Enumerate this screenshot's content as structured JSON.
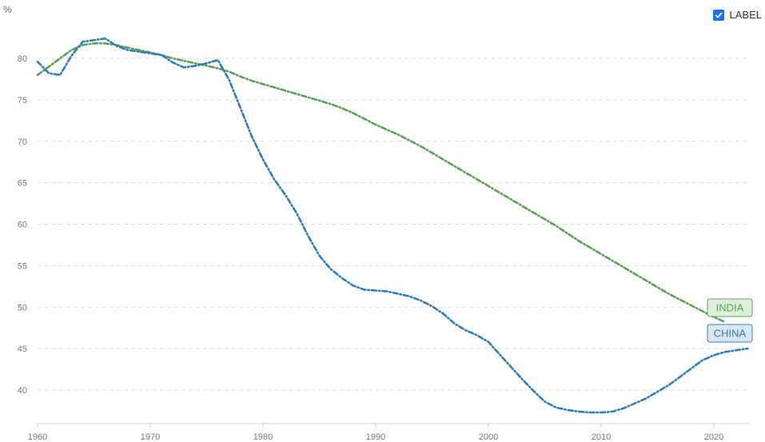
{
  "label_toggle": {
    "text": "LABEL",
    "checked": true,
    "color": "#1a73e8"
  },
  "chart_data": {
    "type": "line",
    "ylabel": "%",
    "xlim": [
      1960,
      2023
    ],
    "ylim": [
      37,
      85
    ],
    "y_ticks": [
      40,
      45,
      50,
      55,
      60,
      65,
      70,
      75,
      80
    ],
    "x_ticks": [
      1960,
      1970,
      1980,
      1990,
      2000,
      2010,
      2020
    ],
    "grid": true,
    "series": [
      {
        "name": "INDIA",
        "color": "#5b9e58",
        "tag_fill": "#dcefd8",
        "x": [
          1960,
          1961,
          1962,
          1963,
          1964,
          1965,
          1966,
          1967,
          1968,
          1969,
          1970,
          1971,
          1972,
          1973,
          1974,
          1975,
          1976,
          1977,
          1978,
          1979,
          1980,
          1981,
          1982,
          1983,
          1984,
          1985,
          1986,
          1987,
          1988,
          1989,
          1990,
          1991,
          1992,
          1993,
          1994,
          1995,
          1996,
          1997,
          1998,
          1999,
          2000,
          2001,
          2002,
          2003,
          2004,
          2005,
          2006,
          2007,
          2008,
          2009,
          2010,
          2011,
          2012,
          2013,
          2014,
          2015,
          2016,
          2017,
          2018,
          2019,
          2020,
          2021
        ],
        "values": [
          78.0,
          79.0,
          80.0,
          81.0,
          81.6,
          81.8,
          81.8,
          81.6,
          81.3,
          81.0,
          80.7,
          80.4,
          80.0,
          79.7,
          79.4,
          79.1,
          78.8,
          78.4,
          77.8,
          77.3,
          76.9,
          76.5,
          76.1,
          75.7,
          75.3,
          74.9,
          74.5,
          74.0,
          73.4,
          72.7,
          72.0,
          71.4,
          70.8,
          70.1,
          69.4,
          68.6,
          67.8,
          67.0,
          66.2,
          65.4,
          64.6,
          63.8,
          63.0,
          62.2,
          61.4,
          60.6,
          59.8,
          58.9,
          58.0,
          57.2,
          56.4,
          55.6,
          54.8,
          54.0,
          53.2,
          52.4,
          51.6,
          50.9,
          50.2,
          49.5,
          48.8,
          48.2
        ]
      },
      {
        "name": "CHINA",
        "color": "#2e7bb5",
        "tag_fill": "#d6e6f3",
        "x": [
          1960,
          1961,
          1962,
          1963,
          1964,
          1965,
          1966,
          1967,
          1968,
          1969,
          1970,
          1971,
          1972,
          1973,
          1974,
          1975,
          1976,
          1977,
          1978,
          1979,
          1980,
          1981,
          1982,
          1983,
          1984,
          1985,
          1986,
          1987,
          1988,
          1989,
          1990,
          1991,
          1992,
          1993,
          1994,
          1995,
          1996,
          1997,
          1998,
          1999,
          2000,
          2001,
          2002,
          2003,
          2004,
          2005,
          2006,
          2007,
          2008,
          2009,
          2010,
          2011,
          2012,
          2013,
          2014,
          2015,
          2016,
          2017,
          2018,
          2019,
          2020,
          2021,
          2022,
          2023
        ],
        "values": [
          79.6,
          78.2,
          78.0,
          80.3,
          82.0,
          82.2,
          82.4,
          81.5,
          81.0,
          80.8,
          80.6,
          80.4,
          79.5,
          78.9,
          79.1,
          79.4,
          79.8,
          77.4,
          74.0,
          70.6,
          67.8,
          65.4,
          63.5,
          61.3,
          58.6,
          56.2,
          54.6,
          53.5,
          52.6,
          52.1,
          52.0,
          51.9,
          51.6,
          51.3,
          50.8,
          50.1,
          49.2,
          48.0,
          47.2,
          46.6,
          45.8,
          44.3,
          42.8,
          41.3,
          39.9,
          38.6,
          37.9,
          37.6,
          37.4,
          37.3,
          37.3,
          37.4,
          37.8,
          38.4,
          39.0,
          39.8,
          40.6,
          41.6,
          42.6,
          43.6,
          44.2,
          44.6,
          44.8,
          45.0
        ]
      }
    ]
  }
}
